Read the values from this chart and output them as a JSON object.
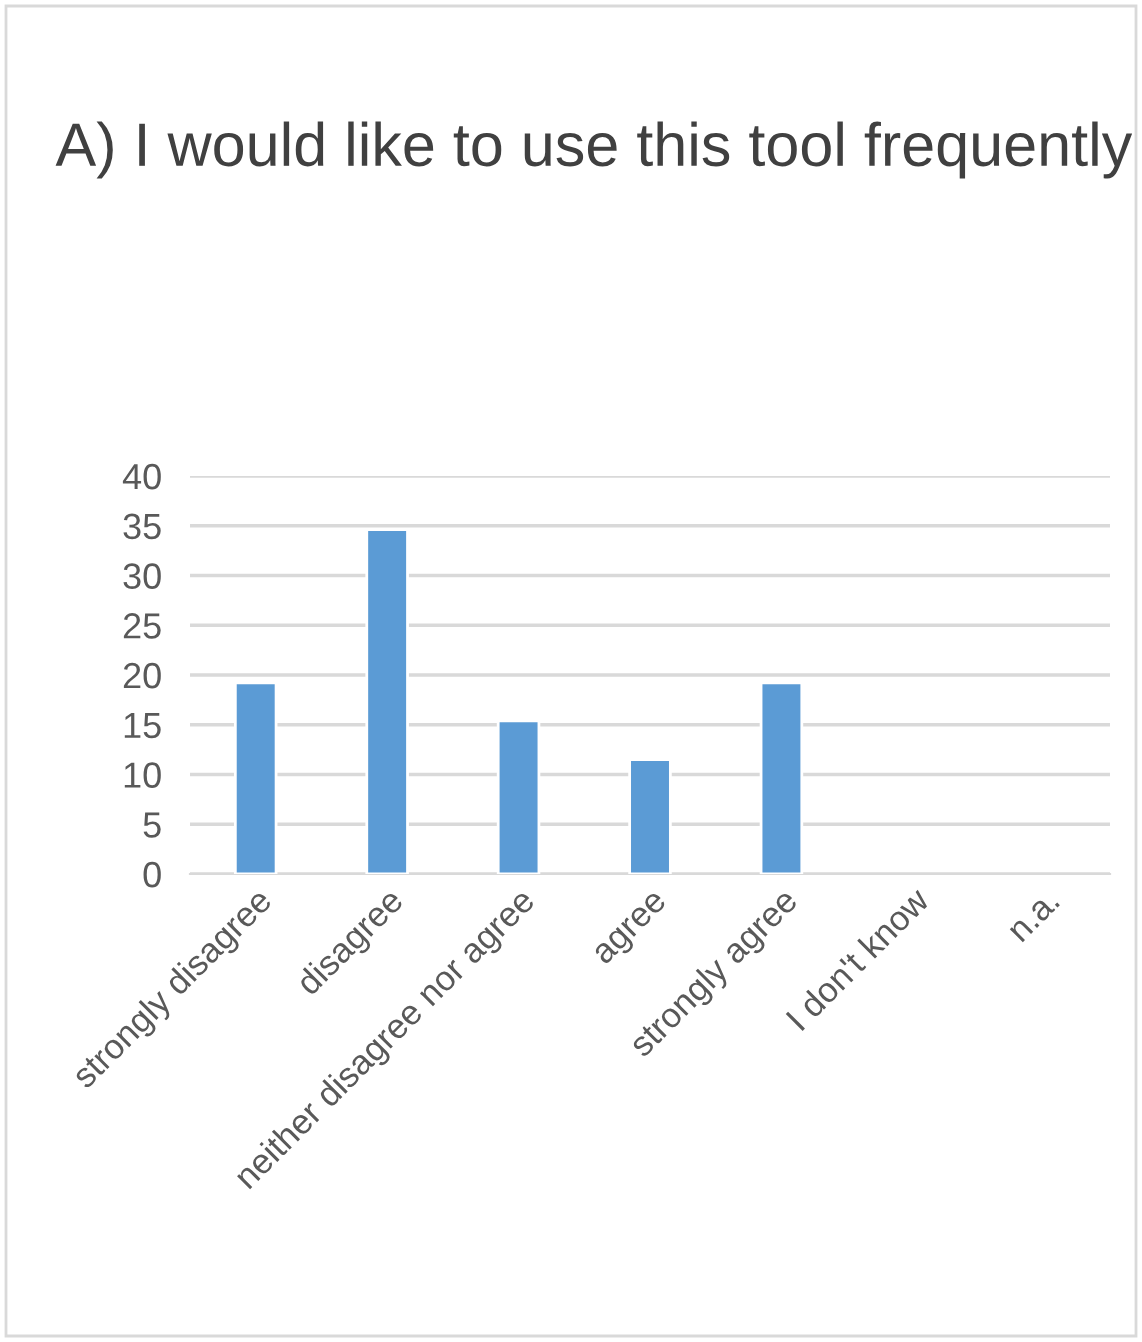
{
  "chart_data": {
    "type": "bar",
    "title": "A) I would like to use this tool frequently",
    "categories": [
      "strongly disagree",
      "disagree",
      "neither disagree nor agree",
      "agree",
      "strongly agree",
      "I don't know",
      "n.a."
    ],
    "values": [
      19.2,
      34.6,
      15.4,
      11.5,
      19.2,
      null,
      null
    ],
    "color": "#5b9bd5",
    "ylim": [
      0,
      40
    ],
    "yticks": [
      0,
      5,
      10,
      15,
      20,
      25,
      30,
      35,
      40
    ],
    "grid": "y"
  }
}
